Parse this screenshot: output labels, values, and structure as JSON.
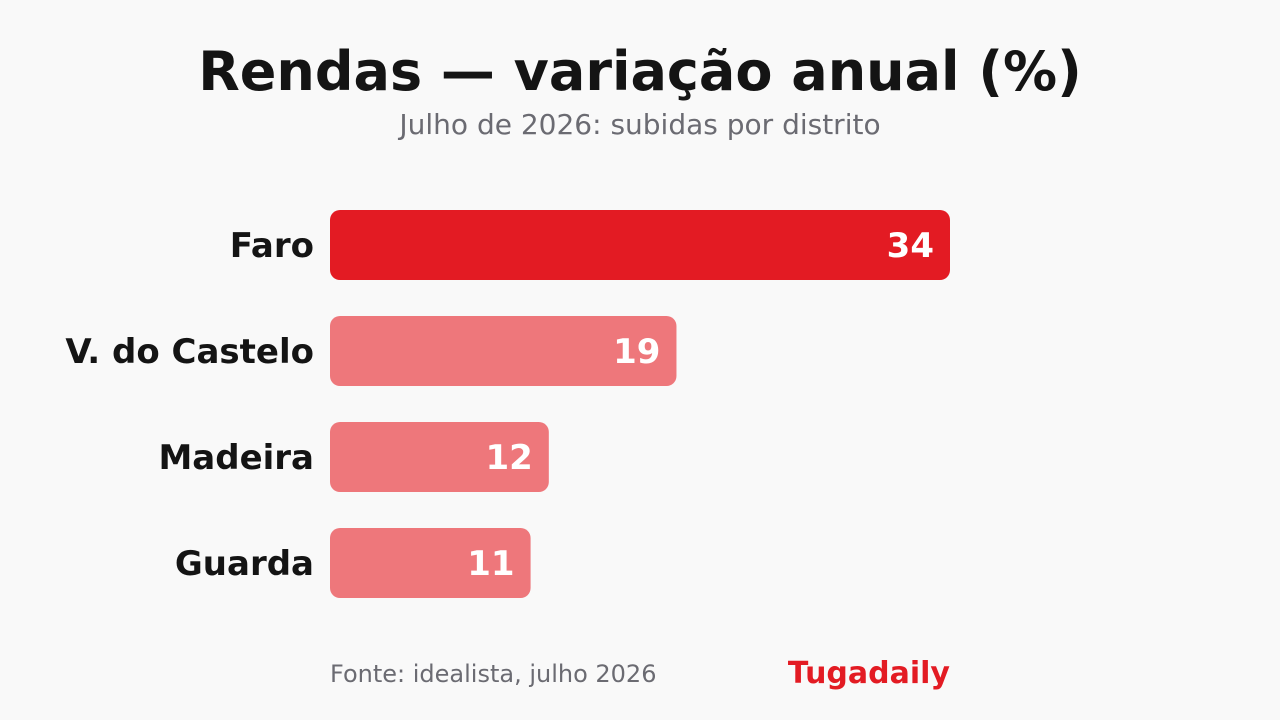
{
  "title": "Rendas — variação anual (%)",
  "subtitle": "Julho de 2026: subidas por distrito",
  "source": "Fonte: idealista, julho 2026",
  "brand": "Tugadaily",
  "colors": {
    "highlight": "#e31b23",
    "bar": "#ee777b",
    "label": "#141414",
    "value_text": "#ffffff",
    "muted": "#6b6b72",
    "background": "#f9f9f9"
  },
  "chart_data": {
    "type": "bar",
    "orientation": "horizontal",
    "title": "Rendas — variação anual (%)",
    "subtitle": "Julho de 2026: subidas por distrito",
    "categories": [
      "Faro",
      "V. do Castelo",
      "Madeira",
      "Guarda"
    ],
    "values": [
      34,
      19,
      12,
      11
    ],
    "highlighted": [
      "Faro"
    ],
    "xlim": [
      0,
      34
    ],
    "grid": false,
    "legend": "none"
  }
}
